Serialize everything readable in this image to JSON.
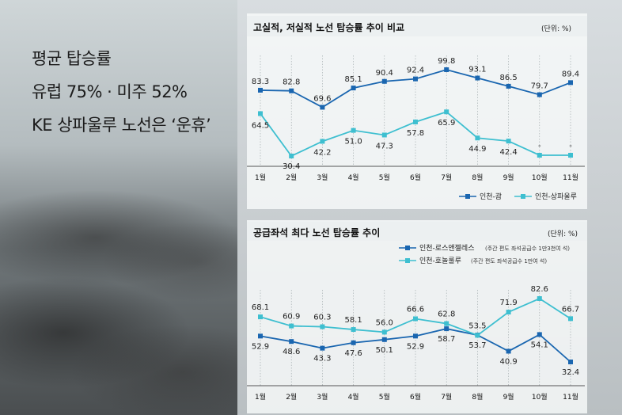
{
  "headline": {
    "line1": "평균 탑승률",
    "line2": "유럽 75% · 미주 52%",
    "line3": "KE 상파울루 노선은 ‘운휴’"
  },
  "charts_meta": {
    "colors": {
      "series_a": "#1a66b0",
      "series_b": "#3ebfd0"
    }
  },
  "chart_data": [
    {
      "type": "line",
      "title": "고실적, 저실적 노선 탑승률 추이 비교",
      "unit": "(단위: %)",
      "categories": [
        "1월",
        "2월",
        "3월",
        "4월",
        "5월",
        "6월",
        "7월",
        "8월",
        "9월",
        "10월",
        "11월"
      ],
      "series": [
        {
          "name": "인천-괌",
          "values": [
            83.3,
            82.8,
            69.6,
            85.1,
            90.4,
            92.4,
            99.8,
            93.1,
            86.5,
            79.7,
            89.4
          ]
        },
        {
          "name": "인천-상파울루",
          "values": [
            64.5,
            30.4,
            42.2,
            51.0,
            47.3,
            57.8,
            65.9,
            44.9,
            42.4,
            null,
            null
          ]
        }
      ],
      "trailing_marks": [
        "-",
        "-"
      ],
      "ylim": [
        20,
        105
      ]
    },
    {
      "type": "line",
      "title": "공급좌석 최다 노선 탑승률 추이",
      "unit": "(단위: %)",
      "categories": [
        "1월",
        "2월",
        "3월",
        "4월",
        "5월",
        "6월",
        "7월",
        "8월",
        "9월",
        "10월",
        "11월"
      ],
      "series": [
        {
          "name": "인천-로스앤젤레스",
          "note": "(주간 편도 좌석공급수 1만3천여 석)",
          "values": [
            52.9,
            48.6,
            43.3,
            47.6,
            50.1,
            52.9,
            58.7,
            53.7,
            40.9,
            54.1,
            32.4
          ]
        },
        {
          "name": "인천-호놀룰루",
          "note": "(주간 편도 좌석공급수 1만여 석)",
          "values": [
            68.1,
            60.9,
            60.3,
            58.1,
            56.0,
            66.6,
            62.8,
            53.5,
            71.9,
            82.6,
            66.7
          ]
        }
      ],
      "ylim": [
        25,
        90
      ]
    }
  ]
}
